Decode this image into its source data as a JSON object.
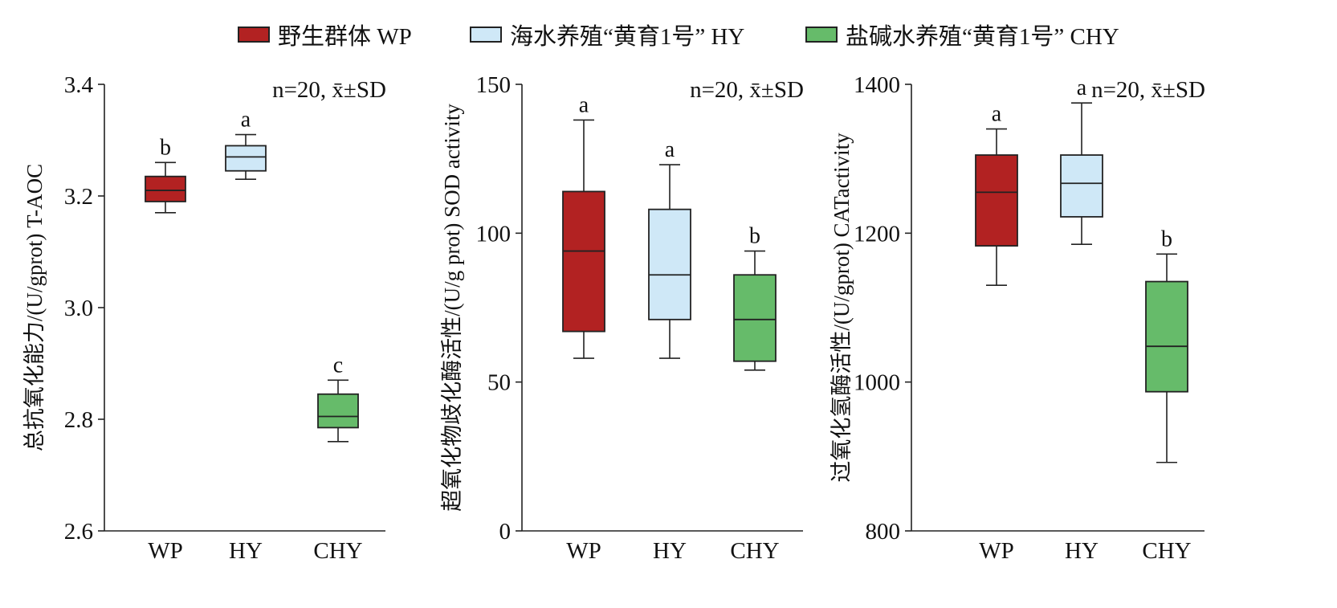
{
  "legend": [
    {
      "label": "野生群体 WP",
      "color": "#b22222"
    },
    {
      "label": "海水养殖“黄育1号” HY",
      "color": "#cfe8f7"
    },
    {
      "label": "盐碱水养殖“黄育1号” CHY",
      "color": "#66bb6a"
    }
  ],
  "chart_data": [
    {
      "type": "box",
      "ylabel": "总抗氧化能力/(U/gprot) T-AOC",
      "annotation": "n=20, x̄±SD",
      "ylim": [
        2.6,
        3.4
      ],
      "yticks": [
        2.6,
        2.8,
        3.0,
        3.2,
        3.4
      ],
      "ytick_labels": [
        "2.6",
        "2.8",
        "3.0",
        "3.2",
        "3.4"
      ],
      "categories": [
        "WP",
        "HY",
        "CHY"
      ],
      "boxes": [
        {
          "category": "WP",
          "min": 3.17,
          "q1": 3.19,
          "median": 3.21,
          "q3": 3.235,
          "max": 3.26,
          "letter": "b"
        },
        {
          "category": "HY",
          "min": 3.23,
          "q1": 3.245,
          "median": 3.27,
          "q3": 3.29,
          "max": 3.31,
          "letter": "a"
        },
        {
          "category": "CHY",
          "min": 2.76,
          "q1": 2.785,
          "median": 2.805,
          "q3": 2.845,
          "max": 2.87,
          "letter": "c"
        }
      ]
    },
    {
      "type": "box",
      "ylabel": "超氧化物歧化酶活性/(U/g prot) SOD activity",
      "annotation": "n=20, x̄±SD",
      "ylim": [
        0,
        150
      ],
      "yticks": [
        0,
        50,
        100,
        150
      ],
      "ytick_labels": [
        "0",
        "50",
        "100",
        "150"
      ],
      "categories": [
        "WP",
        "HY",
        "CHY"
      ],
      "boxes": [
        {
          "category": "WP",
          "min": 58,
          "q1": 67,
          "median": 94,
          "q3": 114,
          "max": 138,
          "letter": "a"
        },
        {
          "category": "HY",
          "min": 58,
          "q1": 71,
          "median": 86,
          "q3": 108,
          "max": 123,
          "letter": "a"
        },
        {
          "category": "CHY",
          "min": 54,
          "q1": 57,
          "median": 71,
          "q3": 86,
          "max": 94,
          "letter": "b"
        }
      ]
    },
    {
      "type": "box",
      "ylabel": "过氧化氢酶活性/(U/gprot) CATactivity",
      "annotation": "n=20, x̄±SD",
      "ylim": [
        800,
        1400
      ],
      "yticks": [
        800,
        1000,
        1200,
        1400
      ],
      "ytick_labels": [
        "800",
        "1000",
        "1200",
        "1400"
      ],
      "categories": [
        "WP",
        "HY",
        "CHY"
      ],
      "boxes": [
        {
          "category": "WP",
          "min": 1130,
          "q1": 1183,
          "median": 1255,
          "q3": 1305,
          "max": 1340,
          "letter": "a"
        },
        {
          "category": "HY",
          "min": 1185,
          "q1": 1222,
          "median": 1267,
          "q3": 1305,
          "max": 1375,
          "letter": "a"
        },
        {
          "category": "CHY",
          "min": 892,
          "q1": 987,
          "median": 1048,
          "q3": 1135,
          "max": 1172,
          "letter": "b"
        }
      ]
    }
  ]
}
